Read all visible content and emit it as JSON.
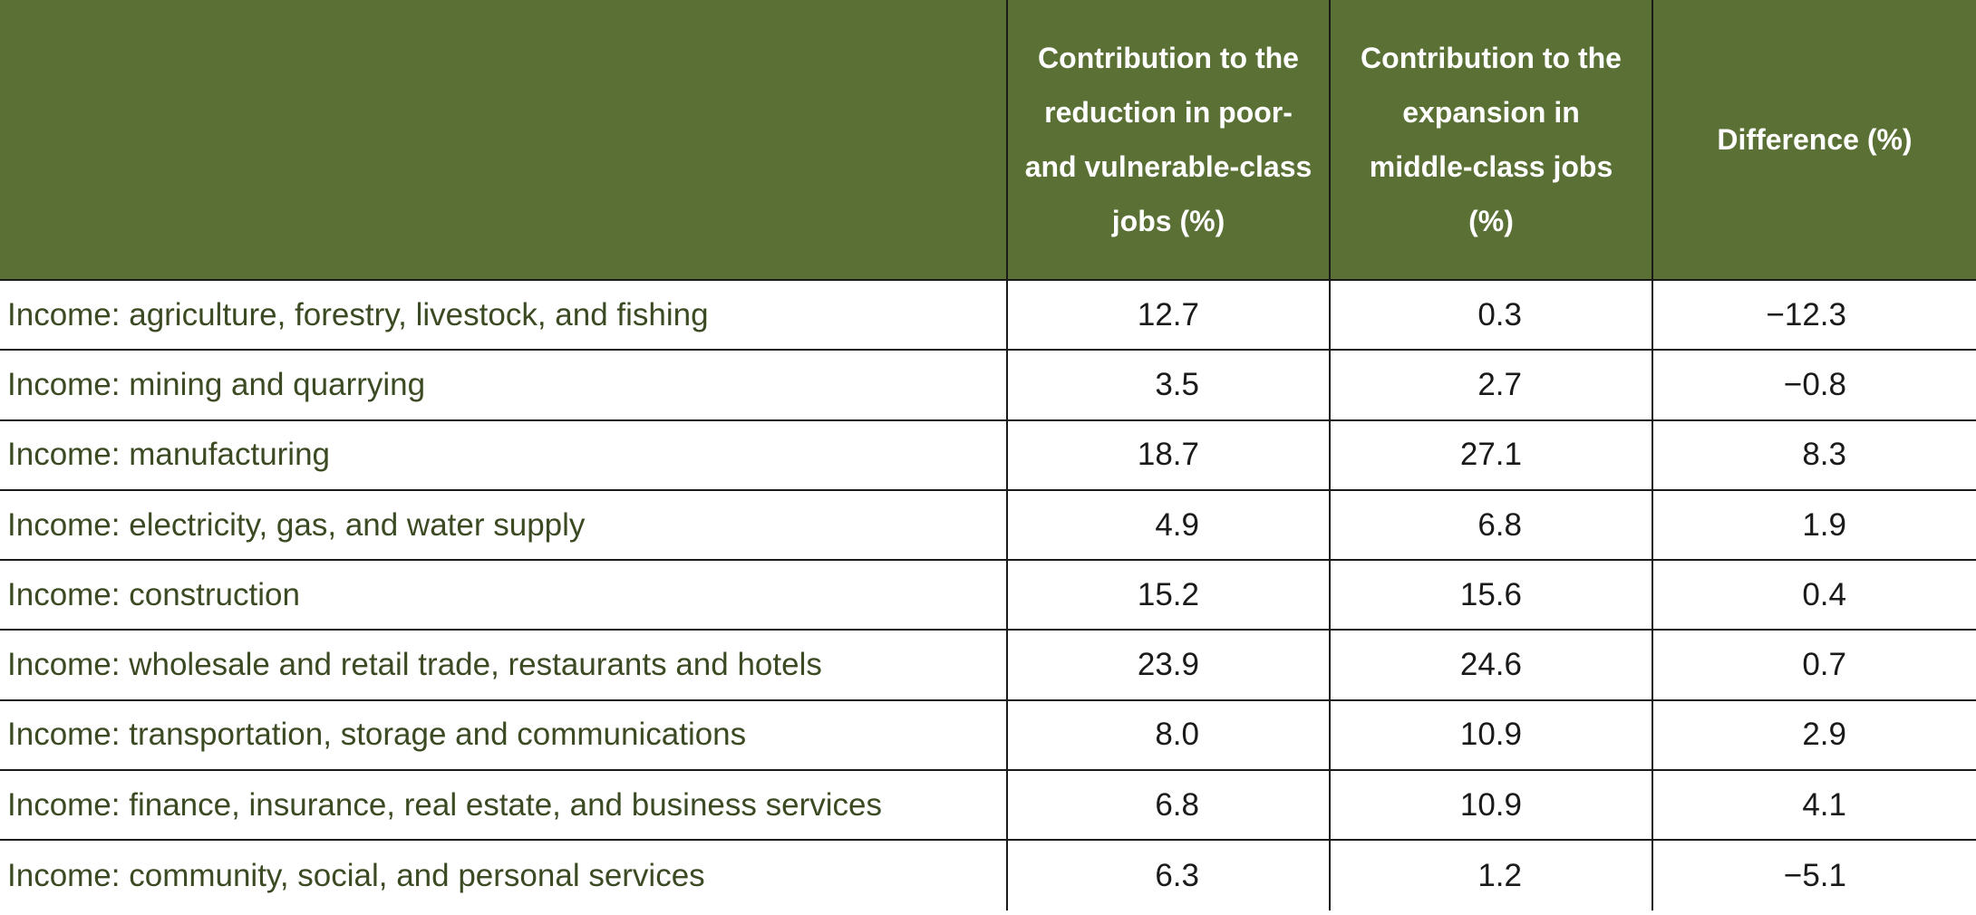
{
  "table": {
    "headers": [
      "",
      "Contribution to the reduction in poor- and vulnerable-class jobs (%)",
      "Contribution to the expansion in middle-class jobs (%)",
      "Difference (%)"
    ],
    "rows": [
      {
        "label": "Income: agriculture, forestry, livestock, and fishing",
        "reduction": "12.7",
        "expansion": "0.3",
        "difference": "−12.3"
      },
      {
        "label": "Income: mining and quarrying",
        "reduction": "3.5",
        "expansion": "2.7",
        "difference": "−0.8"
      },
      {
        "label": "Income: manufacturing",
        "reduction": "18.7",
        "expansion": "27.1",
        "difference": "8.3"
      },
      {
        "label": "Income: electricity, gas, and water supply",
        "reduction": "4.9",
        "expansion": "6.8",
        "difference": "1.9"
      },
      {
        "label": "Income: construction",
        "reduction": "15.2",
        "expansion": "15.6",
        "difference": "0.4"
      },
      {
        "label": "Income: wholesale and retail trade, restaurants and hotels",
        "reduction": "23.9",
        "expansion": "24.6",
        "difference": "0.7"
      },
      {
        "label": "Income: transportation, storage and communications",
        "reduction": "8.0",
        "expansion": "10.9",
        "difference": "2.9"
      },
      {
        "label": "Income: finance, insurance, real estate, and business services",
        "reduction": "6.8",
        "expansion": "10.9",
        "difference": "4.1"
      },
      {
        "label": "Income: community, social, and personal services",
        "reduction": "6.3",
        "expansion": "1.2",
        "difference": "−5.1"
      }
    ]
  },
  "colors": {
    "header_background": "#5a7034",
    "header_text": "#ffffff",
    "label_text": "#3b4a22"
  }
}
